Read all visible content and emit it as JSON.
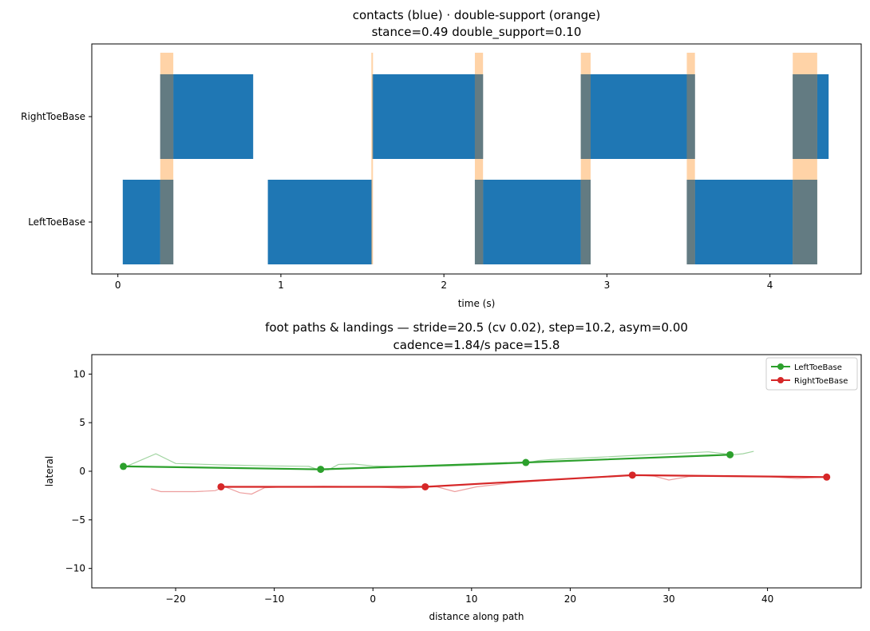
{
  "chart_data": [
    {
      "type": "timeline",
      "title": "contacts (blue) · double-support (orange)",
      "subtitle": "stance=0.49  double_support=0.10",
      "xlabel": "time (s)",
      "ylabel": "",
      "xlim": [
        -0.16,
        4.56
      ],
      "xticks": [
        "0",
        "1",
        "2",
        "3",
        "4"
      ],
      "xtick_values": [
        0,
        1,
        2,
        3,
        4
      ],
      "grid": false,
      "contact_color": "#1f77b4",
      "double_support_color": "#ffbb78",
      "overlap_color": "#637b82",
      "rows": [
        {
          "label": "RightToeBase",
          "intervals": [
            [
              0.26,
              0.83
            ],
            [
              1.56,
              2.24
            ],
            [
              2.84,
              3.54
            ],
            [
              4.14,
              4.36
            ]
          ]
        },
        {
          "label": "LeftToeBase",
          "intervals": [
            [
              0.03,
              0.34
            ],
            [
              0.92,
              1.56
            ],
            [
              2.19,
              2.9
            ],
            [
              3.49,
              4.29
            ]
          ]
        }
      ],
      "double_support": [
        [
          0.26,
          0.34
        ],
        [
          1.555,
          1.565
        ],
        [
          2.19,
          2.24
        ],
        [
          2.84,
          2.9
        ],
        [
          3.49,
          3.54
        ],
        [
          4.14,
          4.29
        ]
      ]
    },
    {
      "type": "line",
      "title": "foot paths & landings — stride=20.5 (cv 0.02), step=10.2, asym=0.00",
      "subtitle": "cadence=1.84/s  pace=15.8",
      "xlabel": "distance along path",
      "ylabel": "lateral",
      "xlim": [
        -28.5,
        49.5
      ],
      "ylim": [
        -12,
        12
      ],
      "xticks": [
        "−20",
        "−10",
        "0",
        "10",
        "20",
        "30",
        "40"
      ],
      "xtick_values": [
        -20,
        -10,
        0,
        10,
        20,
        30,
        40
      ],
      "yticks": [
        "10",
        "5",
        "0",
        "−5",
        "−10"
      ],
      "ytick_values": [
        10,
        5,
        0,
        -5,
        -10
      ],
      "grid": false,
      "legend_position": "top-right",
      "series": [
        {
          "name": "LeftToeBase",
          "color": "#2ca02c",
          "landings": {
            "x": [
              -25.3,
              -5.3,
              15.5,
              36.2
            ],
            "y": [
              0.5,
              0.2,
              0.9,
              1.7
            ]
          },
          "path": {
            "x": [
              -25.0,
              -22.0,
              -20,
              -15,
              -10,
              -6.5,
              -5.5,
              -4.5,
              -3.5,
              -2,
              0,
              4,
              8,
              12,
              15.5,
              16.8,
              18,
              22,
              26,
              30,
              34,
              36.5,
              37.5,
              38.6
            ],
            "y": [
              0.5,
              1.8,
              0.8,
              0.65,
              0.55,
              0.5,
              0.15,
              0.15,
              0.7,
              0.75,
              0.55,
              0.45,
              0.55,
              0.7,
              0.85,
              1.1,
              1.2,
              1.4,
              1.6,
              1.8,
              2.0,
              1.7,
              1.8,
              2.05
            ]
          }
        },
        {
          "name": "RightToeBase",
          "color": "#d62728",
          "landings": {
            "x": [
              -15.4,
              5.3,
              26.3,
              46.0
            ],
            "y": [
              -1.6,
              -1.6,
              -0.4,
              -0.6
            ]
          },
          "path": {
            "x": [
              -22.5,
              -21.5,
              -18,
              -16,
              -15,
              -13.5,
              -12.3,
              -11,
              -9,
              -5,
              0,
              3,
              5.0,
              6.5,
              8.3,
              10.5,
              14,
              18,
              22,
              26,
              27,
              28.5,
              30,
              32,
              36,
              40,
              43,
              45.5
            ],
            "y": [
              -1.8,
              -2.1,
              -2.1,
              -2.0,
              -1.6,
              -2.2,
              -2.35,
              -1.7,
              -1.6,
              -1.55,
              -1.6,
              -1.75,
              -1.6,
              -1.6,
              -2.1,
              -1.6,
              -1.2,
              -0.9,
              -0.65,
              -0.45,
              -0.4,
              -0.5,
              -0.9,
              -0.55,
              -0.45,
              -0.55,
              -0.75,
              -0.6
            ]
          }
        }
      ]
    }
  ]
}
